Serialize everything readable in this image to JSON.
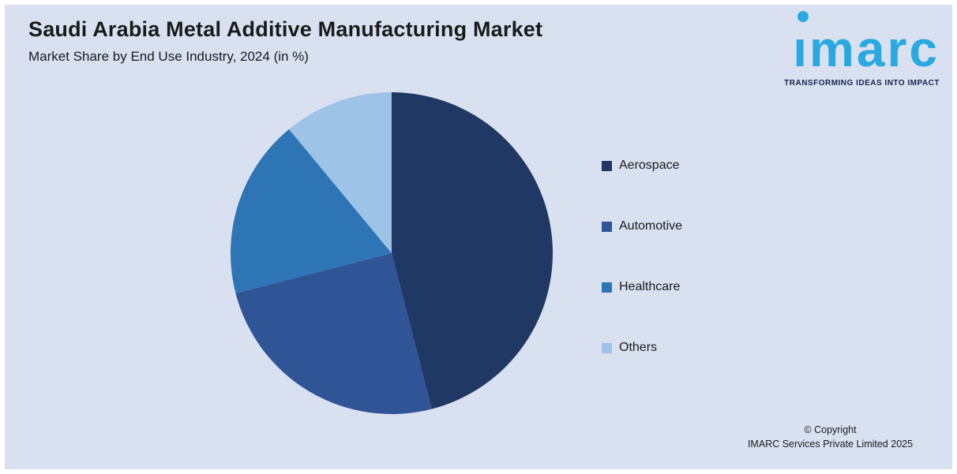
{
  "page": {
    "background": "#d9e1f1",
    "frame_color": "#ffffff"
  },
  "header": {
    "title": "Saudi Arabia Metal Additive Manufacturing Market",
    "subtitle": "Market Share by End Use Industry, 2024 (in %)"
  },
  "logo": {
    "text": "ımarc",
    "tagline": "TRANSFORMING IDEAS INTO IMPACT",
    "color": "#29a9e1",
    "tagline_color": "#15234e"
  },
  "chart_data": {
    "type": "pie",
    "title": "Saudi Arabia Metal Additive Manufacturing Market",
    "subtitle": "Market Share by End Use Industry, 2024 (in %)",
    "categories": [
      "Aerospace",
      "Automotive",
      "Healthcare",
      "Others"
    ],
    "values": [
      46,
      25,
      18,
      11
    ],
    "unit": "%",
    "colors": [
      "#1f3864",
      "#2f5597",
      "#2e75b6",
      "#9dc3e6"
    ],
    "start_angle_deg": 0,
    "direction": "clockwise",
    "legend_position": "right",
    "data_labels": false
  },
  "footer": {
    "line1": "© Copyright",
    "line2": "IMARC Services Private Limited 2025"
  }
}
